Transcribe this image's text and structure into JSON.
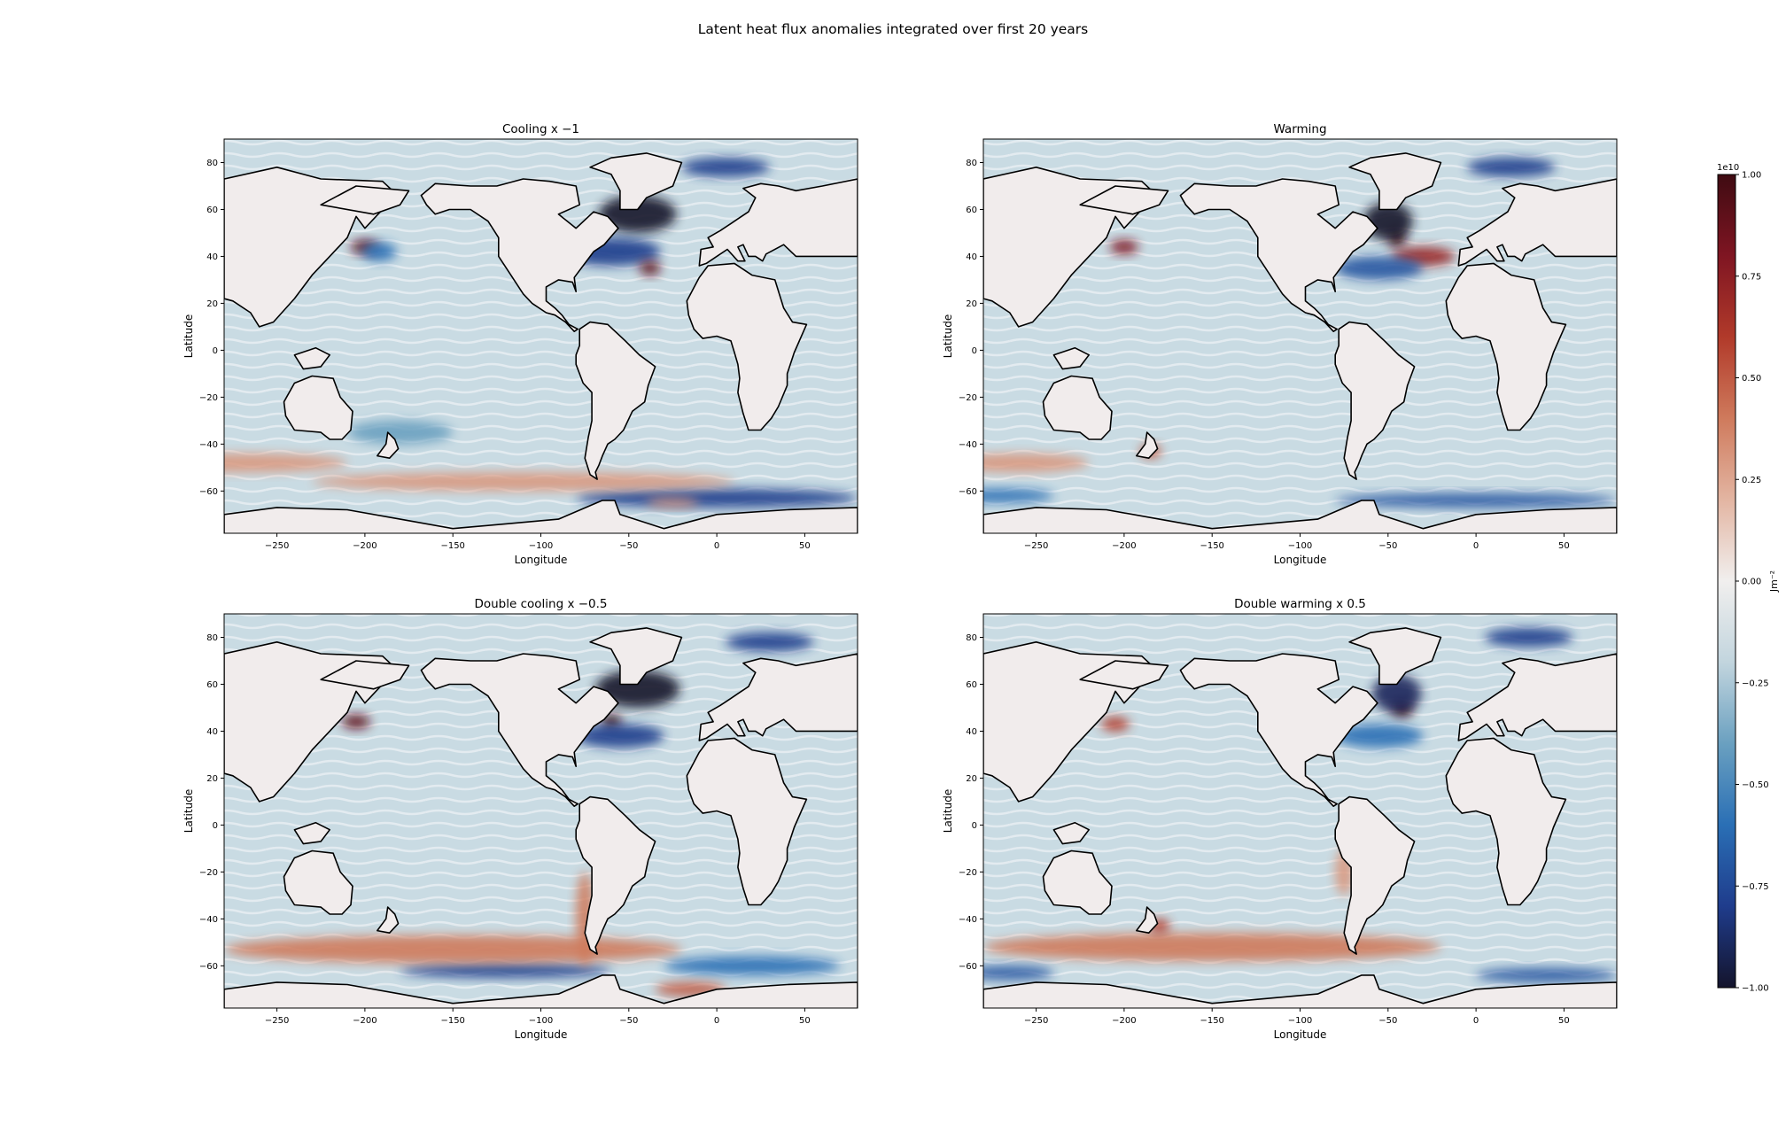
{
  "figure": {
    "title": "Latent heat flux anomalies integrated over first 20 years"
  },
  "chart_data": [
    {
      "type": "heatmap",
      "title": "Cooling x −1",
      "xlabel": "Longitude",
      "ylabel": "Latitude",
      "xlim": [
        -280,
        80
      ],
      "ylim": [
        -78,
        90
      ],
      "xticks": [
        -250,
        -200,
        -150,
        -100,
        -50,
        0,
        50
      ],
      "yticks": [
        80,
        60,
        40,
        20,
        0,
        -20,
        -40,
        -60
      ],
      "xticklabels": [
        "−250",
        "−200",
        "−150",
        "−100",
        "−50",
        "0",
        "50"
      ],
      "yticklabels": [
        "80",
        "60",
        "40",
        "20",
        "0",
        "−20",
        "−40",
        "−60"
      ],
      "anomalies": [
        {
          "lon": -45,
          "lat": 58,
          "value": -1.0,
          "rlon": 22,
          "rlat": 8
        },
        {
          "lon": -60,
          "lat": 42,
          "value": -0.8,
          "rlon": 28,
          "rlat": 6
        },
        {
          "lon": -38,
          "lat": 35,
          "value": 0.9,
          "rlon": 6,
          "rlat": 3
        },
        {
          "lon": -200,
          "lat": 44,
          "value": 0.9,
          "rlon": 8,
          "rlat": 3
        },
        {
          "lon": -192,
          "lat": 42,
          "value": -0.6,
          "rlon": 10,
          "rlat": 4
        },
        {
          "lon": 5,
          "lat": 78,
          "value": -0.8,
          "rlon": 25,
          "rlat": 4
        },
        {
          "lon": 0,
          "lat": -63,
          "value": -0.8,
          "rlon": 80,
          "rlat": 4
        },
        {
          "lon": -110,
          "lat": -56,
          "value": 0.3,
          "rlon": 120,
          "rlat": 4
        },
        {
          "lon": -270,
          "lat": -48,
          "value": 0.3,
          "rlon": 60,
          "rlat": 4
        },
        {
          "lon": -180,
          "lat": -35,
          "value": -0.4,
          "rlon": 30,
          "rlat": 5
        },
        {
          "lon": -25,
          "lat": -65,
          "value": 0.3,
          "rlon": 15,
          "rlat": 2
        }
      ]
    },
    {
      "type": "heatmap",
      "title": "Warming",
      "xlabel": "Longitude",
      "ylabel": "Latitude",
      "xlim": [
        -280,
        80
      ],
      "ylim": [
        -78,
        90
      ],
      "xticks": [
        -250,
        -200,
        -150,
        -100,
        -50,
        0,
        50
      ],
      "yticks": [
        80,
        60,
        40,
        20,
        0,
        -20,
        -40,
        -60
      ],
      "xticklabels": [
        "−250",
        "−200",
        "−150",
        "−100",
        "−50",
        "0",
        "50"
      ],
      "yticklabels": [
        "80",
        "60",
        "40",
        "20",
        "0",
        "−20",
        "−40",
        "−60"
      ],
      "anomalies": [
        {
          "lon": -45,
          "lat": 48,
          "value": 1.0,
          "rlon": 5,
          "rlat": 4
        },
        {
          "lon": -50,
          "lat": 55,
          "value": -1.0,
          "rlon": 14,
          "rlat": 8
        },
        {
          "lon": -30,
          "lat": 40,
          "value": 0.7,
          "rlon": 18,
          "rlat": 4
        },
        {
          "lon": -55,
          "lat": 35,
          "value": -0.7,
          "rlon": 25,
          "rlat": 5
        },
        {
          "lon": -200,
          "lat": 44,
          "value": 0.8,
          "rlon": 8,
          "rlat": 3
        },
        {
          "lon": 20,
          "lat": 78,
          "value": -0.8,
          "rlon": 25,
          "rlat": 4
        },
        {
          "lon": 0,
          "lat": -64,
          "value": -0.7,
          "rlon": 80,
          "rlat": 3
        },
        {
          "lon": -270,
          "lat": -62,
          "value": -0.6,
          "rlon": 30,
          "rlat": 3
        },
        {
          "lon": -185,
          "lat": -43,
          "value": 0.5,
          "rlon": 6,
          "rlat": 3
        },
        {
          "lon": -260,
          "lat": -48,
          "value": 0.3,
          "rlon": 40,
          "rlat": 4
        }
      ]
    },
    {
      "type": "heatmap",
      "title": "Double cooling x −0.5",
      "xlabel": "Longitude",
      "ylabel": "Latitude",
      "xlim": [
        -280,
        80
      ],
      "ylim": [
        -78,
        90
      ],
      "xticks": [
        -250,
        -200,
        -150,
        -100,
        -50,
        0,
        50
      ],
      "yticks": [
        80,
        60,
        40,
        20,
        0,
        -20,
        -40,
        -60
      ],
      "xticklabels": [
        "−250",
        "−200",
        "−150",
        "−100",
        "−50",
        "0",
        "50"
      ],
      "yticklabels": [
        "80",
        "60",
        "40",
        "20",
        "0",
        "−20",
        "−40",
        "−60"
      ],
      "anomalies": [
        {
          "lon": -45,
          "lat": 58,
          "value": -1.0,
          "rlon": 24,
          "rlat": 8
        },
        {
          "lon": -60,
          "lat": 44,
          "value": 1.0,
          "rlon": 6,
          "rlat": 3
        },
        {
          "lon": -55,
          "lat": 38,
          "value": -0.8,
          "rlon": 25,
          "rlat": 5
        },
        {
          "lon": -205,
          "lat": 44,
          "value": 0.9,
          "rlon": 8,
          "rlat": 3
        },
        {
          "lon": 30,
          "lat": 78,
          "value": -0.8,
          "rlon": 25,
          "rlat": 4
        },
        {
          "lon": -120,
          "lat": -62,
          "value": -0.8,
          "rlon": 60,
          "rlat": 3
        },
        {
          "lon": 20,
          "lat": -60,
          "value": -0.6,
          "rlon": 50,
          "rlat": 4
        },
        {
          "lon": -150,
          "lat": -53,
          "value": 0.4,
          "rlon": 130,
          "rlat": 6
        },
        {
          "lon": -75,
          "lat": -40,
          "value": 0.4,
          "rlon": 5,
          "rlat": 20
        },
        {
          "lon": -15,
          "lat": -70,
          "value": 0.5,
          "rlon": 20,
          "rlat": 3
        }
      ]
    },
    {
      "type": "heatmap",
      "title": "Double warming x 0.5",
      "xlabel": "Longitude",
      "ylabel": "Latitude",
      "xlim": [
        -280,
        80
      ],
      "ylim": [
        -78,
        90
      ],
      "xticks": [
        -250,
        -200,
        -150,
        -100,
        -50,
        0,
        50
      ],
      "yticks": [
        80,
        60,
        40,
        20,
        0,
        -20,
        -40,
        -60
      ],
      "xticklabels": [
        "−250",
        "−200",
        "−150",
        "−100",
        "−50",
        "0",
        "50"
      ],
      "yticklabels": [
        "80",
        "60",
        "40",
        "20",
        "0",
        "−20",
        "−40",
        "−60"
      ],
      "anomalies": [
        {
          "lon": -42,
          "lat": 50,
          "value": 1.0,
          "rlon": 6,
          "rlat": 4
        },
        {
          "lon": -45,
          "lat": 56,
          "value": -0.9,
          "rlon": 14,
          "rlat": 8
        },
        {
          "lon": -55,
          "lat": 38,
          "value": -0.6,
          "rlon": 25,
          "rlat": 5
        },
        {
          "lon": -205,
          "lat": 43,
          "value": 0.6,
          "rlon": 8,
          "rlat": 3
        },
        {
          "lon": 30,
          "lat": 80,
          "value": -0.8,
          "rlon": 25,
          "rlat": 4
        },
        {
          "lon": -150,
          "lat": -52,
          "value": 0.4,
          "rlon": 130,
          "rlat": 6
        },
        {
          "lon": -265,
          "lat": -63,
          "value": -0.7,
          "rlon": 25,
          "rlat": 3
        },
        {
          "lon": 40,
          "lat": -64,
          "value": -0.7,
          "rlon": 40,
          "rlat": 3
        },
        {
          "lon": -180,
          "lat": -43,
          "value": 0.6,
          "rlon": 6,
          "rlat": 3
        },
        {
          "lon": -75,
          "lat": -20,
          "value": 0.3,
          "rlon": 5,
          "rlat": 10
        }
      ]
    }
  ],
  "colorbar": {
    "label": "Jm⁻²",
    "exponent": "1e10",
    "range": [
      -1.0,
      1.0
    ],
    "ticks": [
      1.0,
      0.75,
      0.5,
      0.25,
      0.0,
      -0.25,
      -0.5,
      -0.75,
      -1.0
    ],
    "ticklabels": [
      "1.00",
      "0.75",
      "0.50",
      "0.25",
      "0.00",
      "−0.25",
      "−0.50",
      "−0.75",
      "−1.00"
    ],
    "colormap": [
      "#14142c",
      "#1f3c8c",
      "#2a6fb5",
      "#6aa0c0",
      "#c2d5de",
      "#f1efee",
      "#e3b5a2",
      "#cf7a5c",
      "#b13a2a",
      "#7f1522",
      "#3f0b12"
    ]
  },
  "colors": {
    "land": "#f1ecec",
    "ocean_base": "#c9dbe3",
    "coast": "#000000"
  }
}
